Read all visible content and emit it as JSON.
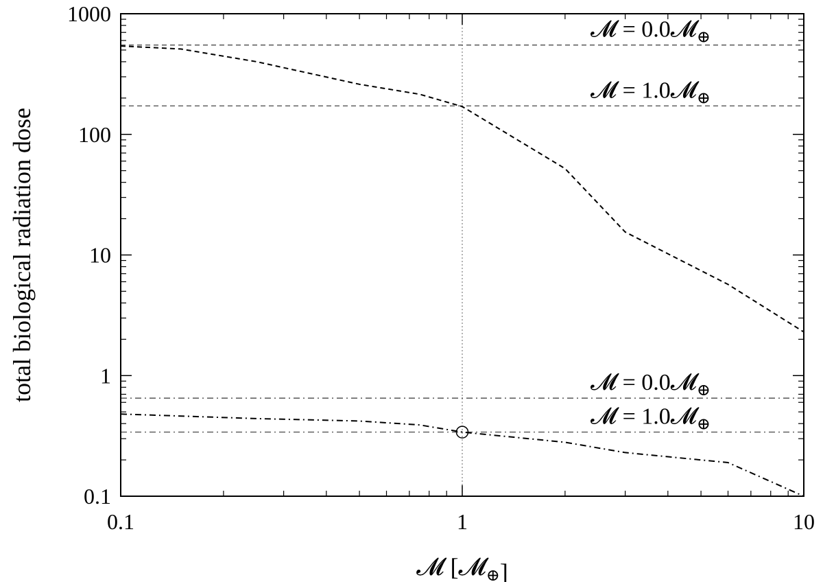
{
  "chart_data": {
    "type": "line",
    "title": "",
    "xlabel": "𝓜 [𝓜⊕]",
    "ylabel": "total biological radiation dose",
    "xscale": "log",
    "yscale": "log",
    "xlim": [
      0.1,
      10
    ],
    "ylim": [
      0.1,
      1000
    ],
    "x_ticks": [
      0.1,
      1,
      10
    ],
    "x_tick_labels": [
      "0.1",
      "1",
      "10"
    ],
    "y_ticks": [
      0.1,
      1,
      10,
      100,
      1000
    ],
    "y_tick_labels": [
      "0.1",
      "1",
      "10",
      "100",
      "1000"
    ],
    "grid": false,
    "colors": {
      "line": "#000000",
      "reference": "#555555",
      "axis": "#000000",
      "vertical_guide": "#808080"
    },
    "series": [
      {
        "style": "dashed",
        "x": [
          0.1,
          0.15,
          0.25,
          0.5,
          0.75,
          1,
          2,
          3,
          6,
          10
        ],
        "y": [
          540,
          510,
          400,
          260,
          215,
          170,
          52,
          15.5,
          5.7,
          2.3
        ]
      },
      {
        "style": "dashdot",
        "x": [
          0.1,
          0.25,
          0.5,
          0.75,
          1,
          2,
          3,
          6,
          10
        ],
        "y": [
          0.48,
          0.44,
          0.42,
          0.39,
          0.34,
          0.28,
          0.23,
          0.19,
          0.1
        ]
      }
    ],
    "reference_lines": [
      {
        "y": 550,
        "style": "dashed",
        "label": "𝓜 = 0.0𝓜⊕"
      },
      {
        "y": 172,
        "style": "dashed",
        "label": "𝓜 = 1.0𝓜⊕"
      },
      {
        "y": 0.65,
        "style": "dashdot",
        "label": "𝓜 = 0.0𝓜⊕"
      },
      {
        "y": 0.34,
        "style": "dashdot",
        "label": "𝓜 = 1.0𝓜⊕"
      }
    ],
    "vertical_line": {
      "x": 1,
      "style": "dotted"
    },
    "markers": [
      {
        "x": 1,
        "y": 0.34,
        "symbol": "open-circle"
      }
    ]
  }
}
